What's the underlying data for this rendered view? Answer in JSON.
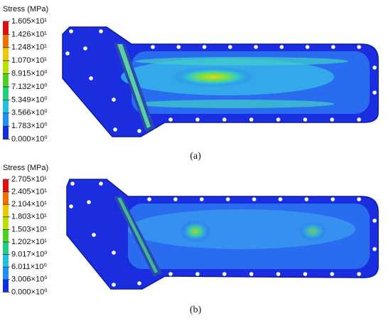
{
  "panels": [
    {
      "legend": {
        "title": "Stress (MPa)",
        "labels": [
          "1.605×10¹",
          "1.426×10¹",
          "1.248×10¹",
          "1.070×10¹",
          "8.915×10⁰",
          "7.132×10⁰",
          "5.349×10⁰",
          "3.566×10⁰",
          "1.783×10⁰",
          "0.000×10⁰"
        ]
      },
      "caption": "(a)"
    },
    {
      "legend": {
        "title": "Stress (MPa)",
        "labels": [
          "2.705×10¹",
          "2.405×10¹",
          "2.104×10¹",
          "1.803×10¹",
          "1.503×10¹",
          "1.202×10¹",
          "9.017×10⁰",
          "6.011×10⁰",
          "3.006×10⁰",
          "0.000×10⁰"
        ]
      },
      "caption": "(b)"
    }
  ]
}
